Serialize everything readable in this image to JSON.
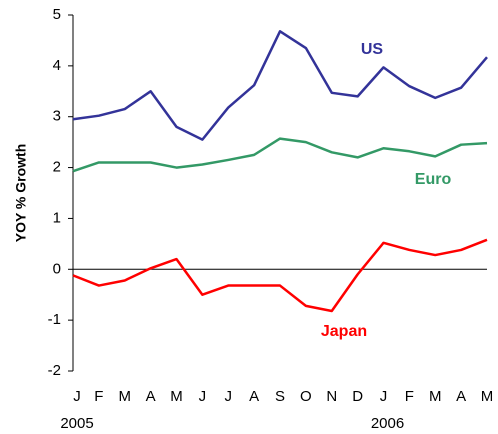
{
  "chart_data": {
    "type": "line",
    "y_label": "YOY % Growth",
    "categories": [
      "J",
      "F",
      "M",
      "A",
      "M",
      "J",
      "J",
      "A",
      "S",
      "O",
      "N",
      "D",
      "J",
      "F",
      "M",
      "A",
      "M"
    ],
    "x_groups": [
      {
        "label": "2005",
        "first_category": 0
      },
      {
        "label": "2006",
        "first_category": 12
      }
    ],
    "series": [
      {
        "name": "US",
        "color": "#333399",
        "values": [
          2.95,
          3.02,
          3.15,
          3.5,
          2.8,
          2.55,
          3.18,
          3.62,
          4.68,
          4.35,
          3.47,
          3.4,
          3.97,
          3.6,
          3.37,
          3.57,
          4.17
        ]
      },
      {
        "name": "Euro",
        "color": "#339966",
        "values": [
          1.93,
          2.1,
          2.1,
          2.1,
          2.0,
          2.06,
          2.15,
          2.25,
          2.57,
          2.5,
          2.3,
          2.2,
          2.38,
          2.32,
          2.22,
          2.45,
          2.48
        ]
      },
      {
        "name": "Japan",
        "color": "#ff0000",
        "values": [
          -0.12,
          -0.32,
          -0.22,
          0.02,
          0.2,
          -0.5,
          -0.32,
          -0.32,
          -0.32,
          -0.72,
          -0.82,
          -0.1,
          0.52,
          0.38,
          0.28,
          0.38,
          0.58
        ]
      }
    ],
    "ylim": [
      -2,
      5
    ],
    "yticks": [
      -2,
      -1,
      0,
      1,
      2,
      3,
      4,
      5
    ],
    "grid": false
  }
}
